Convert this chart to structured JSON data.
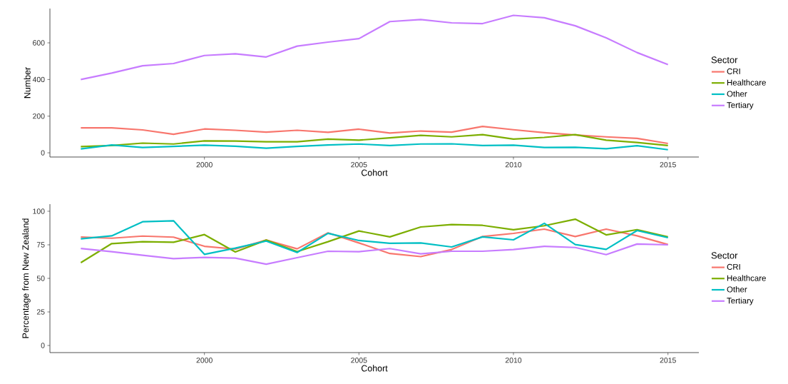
{
  "chart_data": [
    {
      "type": "line",
      "xlabel": "Cohort",
      "ylabel": "Number",
      "legend_title": "Sector",
      "legend": "right",
      "marker": "none",
      "line_style": "solid",
      "x": [
        1996,
        1997,
        1998,
        1999,
        2000,
        2001,
        2002,
        2003,
        2004,
        2005,
        2006,
        2007,
        2008,
        2009,
        2010,
        2011,
        2012,
        2013,
        2014,
        2015
      ],
      "xlim": [
        1995,
        2016
      ],
      "xticks": [
        2000,
        2005,
        2010,
        2015
      ],
      "ylim": [
        -23,
        787
      ],
      "yticks": [
        0,
        200,
        400,
        600
      ],
      "series": [
        {
          "name": "CRI",
          "color": "#f8766d",
          "values": [
            136,
            136,
            125,
            101,
            130,
            123,
            113,
            123,
            112,
            129,
            108,
            119,
            113,
            144,
            126,
            110,
            97,
            87,
            79,
            51
          ]
        },
        {
          "name": "Healthcare",
          "color": "#7cae00",
          "values": [
            34,
            40,
            53,
            48,
            65,
            64,
            60,
            60,
            75,
            69,
            82,
            95,
            87,
            99,
            75,
            84,
            99,
            69,
            56,
            40
          ]
        },
        {
          "name": "Other",
          "color": "#00bfc4",
          "values": [
            21,
            43,
            29,
            35,
            42,
            36,
            25,
            35,
            43,
            48,
            40,
            48,
            49,
            40,
            42,
            29,
            30,
            22,
            39,
            17
          ]
        },
        {
          "name": "Tertiary",
          "color": "#c77cff",
          "values": [
            400,
            435,
            475,
            487,
            531,
            540,
            523,
            582,
            604,
            623,
            716,
            727,
            709,
            705,
            750,
            737,
            693,
            627,
            547,
            481
          ]
        }
      ]
    },
    {
      "type": "line",
      "xlabel": "Cohort",
      "ylabel": "Percentage from New Zealand",
      "legend_title": "Sector",
      "legend": "right",
      "marker": "none",
      "line_style": "solid",
      "x": [
        1996,
        1997,
        1998,
        1999,
        2000,
        2001,
        2002,
        2003,
        2004,
        2005,
        2006,
        2007,
        2008,
        2009,
        2010,
        2011,
        2012,
        2013,
        2014,
        2015
      ],
      "xlim": [
        1995,
        2016
      ],
      "xticks": [
        2000,
        2005,
        2010,
        2015
      ],
      "ylim": [
        -5.3,
        105.3
      ],
      "yticks": [
        0,
        25,
        50,
        75,
        100
      ],
      "series": [
        {
          "name": "CRI",
          "color": "#f8766d",
          "values": [
            80.8,
            79.9,
            81.5,
            80.7,
            73.9,
            71.8,
            78.5,
            72.0,
            83.9,
            76.4,
            68.5,
            66.2,
            71.5,
            81.2,
            83.5,
            86.7,
            81.2,
            86.7,
            81.7,
            75.2
          ]
        },
        {
          "name": "Healthcare",
          "color": "#7cae00",
          "values": [
            61.7,
            75.9,
            77.3,
            76.9,
            82.6,
            69.7,
            78.5,
            69.9,
            77.3,
            85.3,
            80.9,
            88.3,
            90.1,
            89.5,
            86.2,
            89.2,
            94.1,
            82.4,
            86.3,
            81.0
          ]
        },
        {
          "name": "Other",
          "color": "#00bfc4",
          "values": [
            79.4,
            81.7,
            92.2,
            92.9,
            67.9,
            72.5,
            77.8,
            69.3,
            83.6,
            78.2,
            76.1,
            76.4,
            73.4,
            80.9,
            78.7,
            91.0,
            75.2,
            71.6,
            85.6,
            80.3
          ]
        },
        {
          "name": "Tertiary",
          "color": "#c77cff",
          "values": [
            72.3,
            69.9,
            67.2,
            64.7,
            65.6,
            65.1,
            60.6,
            65.4,
            70.2,
            69.9,
            72.2,
            68.3,
            70.2,
            70.2,
            71.5,
            73.9,
            73.0,
            67.7,
            75.6,
            75.0
          ]
        }
      ]
    }
  ]
}
